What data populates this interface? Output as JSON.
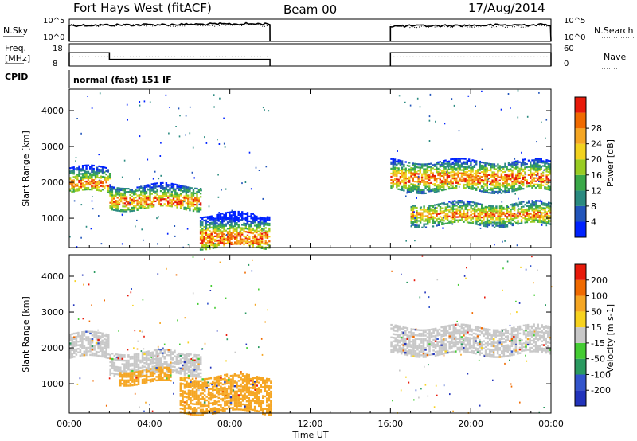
{
  "header": {
    "station": "Fort Hays West (fitACF)",
    "beam": "Beam 00",
    "date": "17/Aug/2014"
  },
  "panels": {
    "noise_left_label": "N.Sky",
    "noise_right_label": "N.Search",
    "noise_ticks": [
      "10^5",
      "10^0"
    ],
    "freq_left_label_1": "Freq.",
    "freq_left_label_2": "[MHz]",
    "freq_ticks": [
      "18",
      "8"
    ],
    "nave_right_label": "Nave",
    "nave_ticks": [
      "60",
      "0"
    ],
    "cpid_label": "CPID",
    "cpid_text": "normal (fast) 151 IF"
  },
  "chart_data": [
    {
      "type": "heatmap",
      "name": "power",
      "ylabel": "Slant Range [km]",
      "xlabel": "",
      "yticks": [
        "1000",
        "2000",
        "3000",
        "4000"
      ],
      "ylim": [
        180,
        4600
      ],
      "colorbar": {
        "label": "Power [dB]",
        "ticks": [
          "4",
          "8",
          "12",
          "16",
          "20",
          "24",
          "28"
        ],
        "colors": [
          "#0022ff",
          "#2255bb",
          "#2a8a80",
          "#3aa848",
          "#99cc22",
          "#f2d21e",
          "#f5a623",
          "#f06a00",
          "#e81a0a"
        ]
      },
      "bands": [
        {
          "t0": 0.0,
          "t1": 2.0,
          "r0": 1700,
          "r1": 2400,
          "core_r0": 1850,
          "core_r1": 2050
        },
        {
          "t0": 2.0,
          "t1": 6.5,
          "r0": 1250,
          "r1": 1900,
          "core_r0": 1350,
          "core_r1": 1550
        },
        {
          "t0": 6.5,
          "t1": 10.0,
          "r0": 180,
          "r1": 1100,
          "core_r0": 250,
          "core_r1": 600
        },
        {
          "t0": 16.0,
          "t1": 24.0,
          "r0": 1750,
          "r1": 2600,
          "core_r0": 1950,
          "core_r1": 2250
        },
        {
          "t0": 17.0,
          "t1": 24.0,
          "r0": 800,
          "r1": 1400,
          "core_r0": 1000,
          "core_r1": 1150
        }
      ]
    },
    {
      "type": "heatmap",
      "name": "velocity",
      "ylabel": "Slant Range [km]",
      "xlabel": "Time UT",
      "xticks": [
        "00:00",
        "04:00",
        "08:00",
        "12:00",
        "16:00",
        "20:00",
        "00:00"
      ],
      "yticks": [
        "1000",
        "2000",
        "3000",
        "4000"
      ],
      "ylim": [
        180,
        4600
      ],
      "colorbar": {
        "label": "Velocity [m s-1]",
        "ticks": [
          "200",
          "100",
          "50",
          "15",
          "-15",
          "-50",
          "-100",
          "-200"
        ],
        "colors": [
          "#2233bb",
          "#3355cc",
          "#2a9a60",
          "#44cc33",
          "#c8c8c8",
          "#f7d21e",
          "#f5a623",
          "#f06a00",
          "#e81a0a"
        ]
      },
      "bands": [
        {
          "t0": 0.0,
          "t1": 2.0,
          "r0": 1700,
          "r1": 2400,
          "color": "#c8c8c8"
        },
        {
          "t0": 2.0,
          "t1": 6.5,
          "r0": 1250,
          "r1": 1900,
          "color": "#c8c8c8"
        },
        {
          "t0": 2.5,
          "t1": 5.0,
          "r0": 1000,
          "r1": 1400,
          "color": "#f5a623"
        },
        {
          "t0": 5.5,
          "t1": 10.0,
          "r0": 180,
          "r1": 1200,
          "color": "#f5a623"
        },
        {
          "t0": 16.0,
          "t1": 24.0,
          "r0": 1800,
          "r1": 2600,
          "color": "#c8c8c8"
        }
      ]
    }
  ],
  "noise_series": {
    "segments": [
      {
        "t0": 0.0,
        "t1": 10.0,
        "level": 0.72
      },
      {
        "t0": 16.0,
        "t1": 24.0,
        "level": 0.68
      }
    ]
  },
  "freq_series": {
    "segments": [
      {
        "t0": 0.0,
        "t1": 2.0,
        "freq": 14
      },
      {
        "t0": 2.0,
        "t1": 10.0,
        "freq": 11
      },
      {
        "t0": 16.0,
        "t1": 24.0,
        "freq": 14
      }
    ],
    "nave": 25
  }
}
